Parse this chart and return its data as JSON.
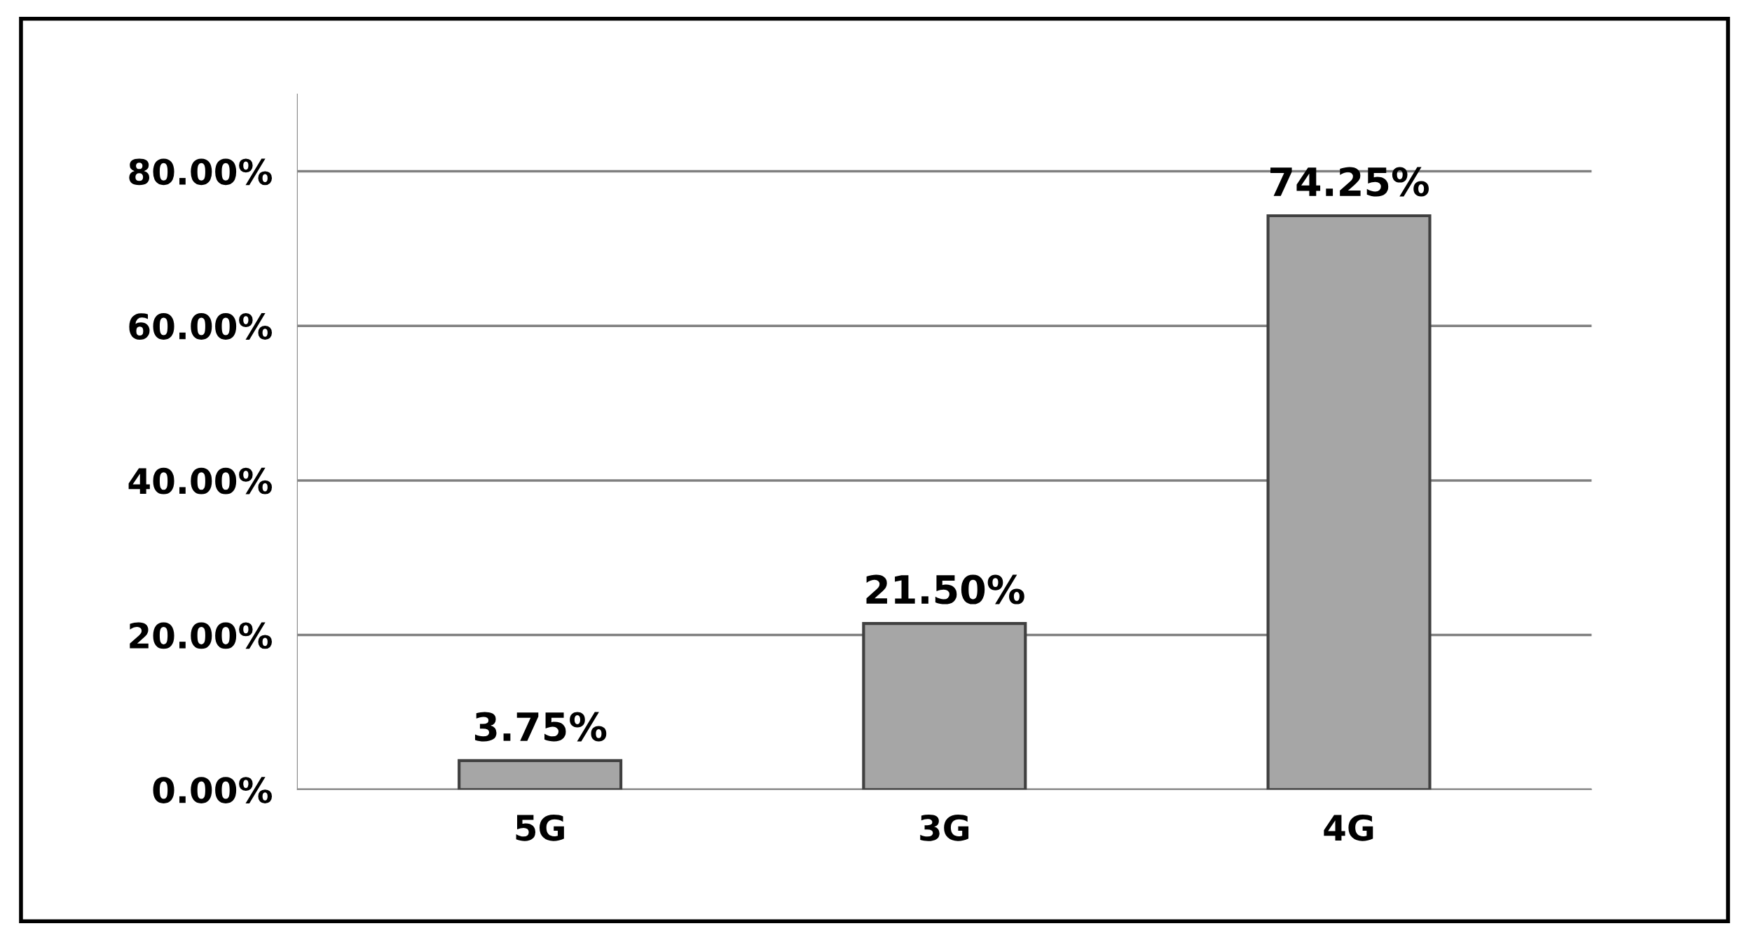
{
  "chart_data": {
    "type": "bar",
    "categories": [
      "5G",
      "3G",
      "4G"
    ],
    "values": [
      3.75,
      21.5,
      74.25
    ],
    "color": "#a6a6a6",
    "value_labels": [
      "3.75%",
      "21.50%",
      "74.25%"
    ],
    "ylim": [
      0,
      90
    ],
    "yticks": [
      {
        "value": 0,
        "label": "0.00%"
      },
      {
        "value": 20,
        "label": "20.00%"
      },
      {
        "value": 40,
        "label": "40.00%"
      },
      {
        "value": 60,
        "label": "60.00%"
      },
      {
        "value": 80,
        "label": "80.00%"
      }
    ],
    "grid": "y"
  }
}
